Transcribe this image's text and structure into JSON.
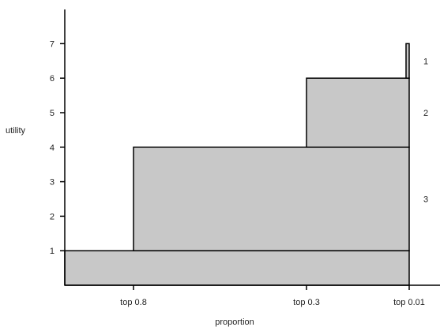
{
  "chart_data": {
    "type": "area",
    "xlabel": "proportion",
    "ylabel": "utility",
    "ylim": [
      0,
      7
    ],
    "x_ticks": [
      "top 0.8",
      "top 0.3",
      "top 0.01"
    ],
    "y_ticks": [
      "1",
      "2",
      "3",
      "4",
      "5",
      "6",
      "7"
    ],
    "grid": false,
    "steps": [
      {
        "x_label": "top 0.8",
        "utility": 4
      },
      {
        "x_label": "top 0.3",
        "utility": 6
      },
      {
        "x_label": "top 0.01",
        "utility": 7
      }
    ],
    "baseline_utility": 1,
    "band_labels": [
      {
        "text": "1",
        "from": 6,
        "to": 7
      },
      {
        "text": "2",
        "from": 4,
        "to": 6
      },
      {
        "text": "3",
        "from": 1,
        "to": 4
      }
    ],
    "fill_color": "#c8c8c8",
    "line_color": "#000000"
  }
}
